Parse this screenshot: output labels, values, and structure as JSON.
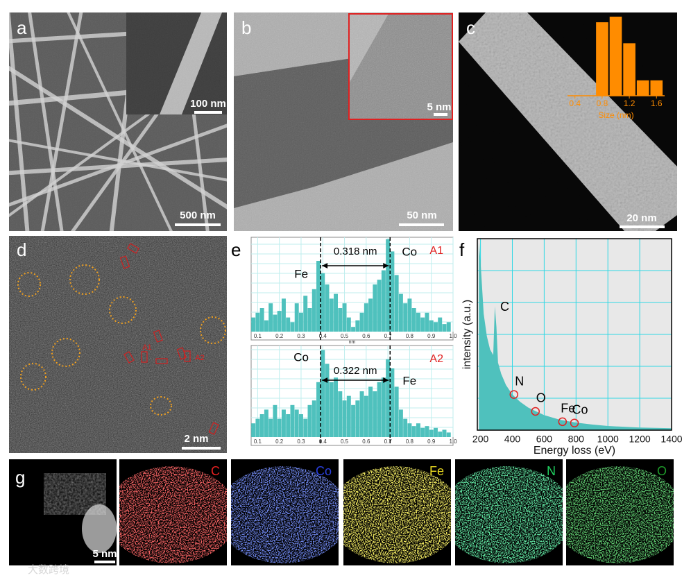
{
  "panels": {
    "a": {
      "label": "a",
      "inset_scale": "100 nm",
      "scale": "500 nm"
    },
    "b": {
      "label": "b",
      "inset_scale": "5 nm",
      "scale": "50 nm"
    },
    "c": {
      "label": "c",
      "scale": "20 nm"
    },
    "d": {
      "label": "d",
      "scale": "2 nm",
      "regions": [
        "A1",
        "A2"
      ]
    },
    "e": {
      "label": "e"
    },
    "f": {
      "label": "f"
    },
    "g": {
      "label": "g",
      "scale": "5 nm",
      "elements": [
        {
          "name": "C",
          "color": "#e82020"
        },
        {
          "name": "Co",
          "color": "#2a40e0"
        },
        {
          "name": "Fe",
          "color": "#e8d820"
        },
        {
          "name": "N",
          "color": "#20d060"
        },
        {
          "name": "O",
          "color": "#1e9a2a"
        }
      ]
    }
  },
  "chart_data": [
    {
      "type": "histogram",
      "bins": [
        0.7,
        0.9,
        1.1,
        1.3,
        1.5,
        1.7
      ],
      "values": [
        105,
        113,
        75,
        22,
        22
      ],
      "color": "#ff8c00",
      "xlim": [
        0.29,
        1.72
      ],
      "ylim": [
        0,
        115
      ],
      "xticks": [
        0.4,
        0.8,
        1.2,
        1.6
      ],
      "xlabel": "Size (nm)"
    },
    {
      "type": "profile",
      "title": "A1",
      "x": [
        0.08,
        0.1,
        0.12,
        0.14,
        0.16,
        0.18,
        0.2,
        0.22,
        0.24,
        0.26,
        0.28,
        0.3,
        0.32,
        0.34,
        0.36,
        0.38,
        0.4,
        0.42,
        0.44,
        0.46,
        0.48,
        0.5,
        0.52,
        0.54,
        0.56,
        0.58,
        0.6,
        0.62,
        0.64,
        0.66,
        0.68,
        0.7,
        0.72,
        0.74,
        0.76,
        0.78,
        0.8,
        0.82,
        0.84,
        0.86,
        0.88,
        0.9,
        0.92,
        0.94,
        0.96,
        0.98
      ],
      "values": [
        0.15,
        0.2,
        0.25,
        0.12,
        0.3,
        0.18,
        0.22,
        0.35,
        0.15,
        0.1,
        0.3,
        0.2,
        0.38,
        0.25,
        0.45,
        0.75,
        0.62,
        0.5,
        0.35,
        0.4,
        0.25,
        0.3,
        0.15,
        0.05,
        0.12,
        0.2,
        0.3,
        0.35,
        0.5,
        0.55,
        0.65,
        0.98,
        0.85,
        0.6,
        0.4,
        0.3,
        0.35,
        0.25,
        0.2,
        0.15,
        0.2,
        0.12,
        0.1,
        0.15,
        0.08,
        0.1
      ],
      "color": "#4fc1bd",
      "xlim": [
        0.07,
        1.0
      ],
      "ylim": [
        0,
        1
      ],
      "xticks": [
        0.1,
        0.2,
        0.3,
        0.4,
        0.5,
        0.6,
        0.7,
        0.8,
        0.9,
        {
          "value": 1,
          "label": "1.0"
        }
      ],
      "xlabel": "nm",
      "grid": true,
      "peaks": [
        {
          "label": "Fe",
          "x": 0.39
        },
        {
          "label": "Co",
          "x": 0.71
        }
      ],
      "distance": "0.318 nm"
    },
    {
      "type": "profile",
      "title": "A2",
      "x": [
        0.08,
        0.1,
        0.12,
        0.14,
        0.16,
        0.18,
        0.2,
        0.22,
        0.24,
        0.26,
        0.28,
        0.3,
        0.32,
        0.34,
        0.36,
        0.38,
        0.4,
        0.42,
        0.44,
        0.46,
        0.48,
        0.5,
        0.52,
        0.54,
        0.56,
        0.58,
        0.6,
        0.62,
        0.64,
        0.66,
        0.68,
        0.7,
        0.72,
        0.74,
        0.76,
        0.78,
        0.8,
        0.82,
        0.84,
        0.86,
        0.88,
        0.9,
        0.92,
        0.94,
        0.96,
        0.98
      ],
      "values": [
        0.15,
        0.2,
        0.25,
        0.3,
        0.2,
        0.35,
        0.2,
        0.3,
        0.25,
        0.35,
        0.3,
        0.25,
        0.2,
        0.35,
        0.4,
        0.6,
        0.95,
        0.8,
        0.6,
        0.65,
        0.5,
        0.4,
        0.45,
        0.35,
        0.4,
        0.5,
        0.45,
        0.55,
        0.5,
        0.6,
        0.65,
        0.85,
        0.75,
        0.55,
        0.3,
        0.2,
        0.15,
        0.12,
        0.15,
        0.1,
        0.12,
        0.08,
        0.1,
        0.06,
        0.08,
        0.05
      ],
      "color": "#4fc1bd",
      "xlim": [
        0.07,
        1.0
      ],
      "ylim": [
        0,
        1
      ],
      "xticks": [
        0.1,
        0.2,
        0.3,
        0.4,
        0.5,
        0.6,
        0.7,
        0.8,
        0.9,
        {
          "value": 1,
          "label": "1.0"
        }
      ],
      "grid": true,
      "peaks": [
        {
          "label": "Co",
          "x": 0.39
        },
        {
          "label": "Fe",
          "x": 0.71
        }
      ],
      "distance": "0.322 nm"
    },
    {
      "type": "area",
      "x": [
        190,
        200,
        220,
        240,
        260,
        280,
        290,
        300,
        310,
        330,
        360,
        400,
        450,
        500,
        550,
        600,
        700,
        800,
        900,
        1000,
        1200,
        1400
      ],
      "values": [
        1.0,
        0.9,
        0.62,
        0.5,
        0.43,
        0.4,
        0.66,
        0.55,
        0.36,
        0.3,
        0.24,
        0.19,
        0.15,
        0.12,
        0.1,
        0.08,
        0.055,
        0.04,
        0.03,
        0.022,
        0.014,
        0.01
      ],
      "color": "#4fc1bd",
      "xlim": [
        180,
        1400
      ],
      "ylim": [
        0,
        1.02
      ],
      "xticks": [
        200,
        400,
        600,
        800,
        1000,
        1200,
        1400
      ],
      "xlabel": "Energy loss (eV)",
      "ylabel": "intensity (a.u.)",
      "grid": true,
      "peak": {
        "label": "C",
        "x": 300,
        "y": 0.66
      },
      "edges": [
        {
          "label": "N",
          "x": 410,
          "y": 0.19
        },
        {
          "label": "O",
          "x": 545,
          "y": 0.1
        },
        {
          "label": "Fe",
          "x": 715,
          "y": 0.045
        },
        {
          "label": "Co",
          "x": 790,
          "y": 0.038
        }
      ]
    }
  ],
  "watermark": "大数跨境"
}
